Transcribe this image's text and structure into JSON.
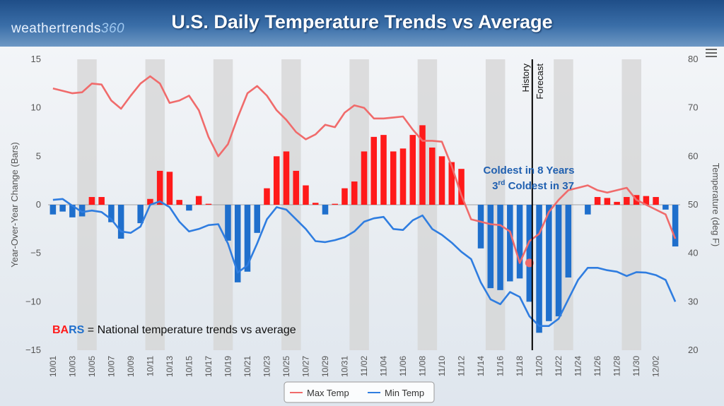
{
  "header": {
    "logo_text": "weathertrends",
    "logo_num": "360",
    "title": "U.S. Daily Temperature Trends vs Average"
  },
  "annotations": {
    "history": "History",
    "forecast": "Forecast",
    "coldest_line1": "Coldest in 8 Years",
    "coldest_line2_pre": "3",
    "coldest_line2_sup": "rd",
    "coldest_line2_post": " Coldest in 37",
    "bars_key": "BARS",
    "bars_desc": " = National temperature trends vs average"
  },
  "colors": {
    "max_temp": "#f06b6b",
    "min_temp": "#2f7de0",
    "bar_positive": "#ff1a1a",
    "bar_negative": "#1f6fcc",
    "band": "#d4d4d4",
    "annotation": "#2060b0"
  },
  "chart_data": {
    "type": "bar",
    "x_labels": [
      "10/01",
      "10/03",
      "10/05",
      "10/07",
      "10/09",
      "10/11",
      "10/13",
      "10/15",
      "10/17",
      "10/19",
      "10/21",
      "10/23",
      "10/25",
      "10/27",
      "10/29",
      "10/31",
      "11/02",
      "11/04",
      "11/06",
      "11/08",
      "11/10",
      "11/12",
      "11/14",
      "11/16",
      "11/18",
      "11/20",
      "11/22",
      "11/24",
      "11/26",
      "11/28",
      "11/30",
      "12/02"
    ],
    "ylabel_left": "Year-Over-Year Change (Bars)",
    "ylabel_right": "Temperature (deg F)",
    "y_left_range": [
      -15,
      15
    ],
    "y_left_ticks": [
      15,
      10,
      5,
      0,
      -5,
      -10,
      -15
    ],
    "y_right_range": [
      20,
      80
    ],
    "y_right_ticks": [
      80,
      70,
      60,
      50,
      40,
      30,
      20
    ],
    "forecast_start": "11/18",
    "highlight_point": {
      "date": "11/18",
      "value": 38
    },
    "series": [
      {
        "name": "Bars",
        "kind": "bar",
        "values": [
          -1.0,
          -0.7,
          -1.3,
          -1.2,
          0.8,
          0.8,
          -1.8,
          -3.5,
          0.0,
          -1.9,
          0.6,
          3.5,
          3.4,
          0.5,
          -0.6,
          0.9,
          0.1,
          0.0,
          -3.7,
          -8.0,
          -6.9,
          -2.9,
          1.7,
          5.0,
          5.5,
          3.5,
          2.0,
          0.2,
          -1.0,
          0.1,
          1.7,
          2.4,
          5.5,
          7.0,
          7.2,
          5.5,
          5.8,
          7.2,
          8.2,
          5.9,
          5.0,
          4.4,
          3.7,
          0.0,
          -4.5,
          -8.6,
          -8.8,
          -7.9,
          -7.6,
          -10.0,
          -13.2,
          -12.0,
          -11.5,
          -7.5,
          0.0,
          -1.0,
          0.8,
          0.7,
          0.3,
          0.8,
          1.0,
          0.9,
          0.8,
          -0.5,
          -4.3
        ]
      },
      {
        "name": "Max Temp",
        "kind": "line",
        "values": [
          74,
          73.5,
          73,
          73.2,
          75,
          74.8,
          71.5,
          69.8,
          72.5,
          75,
          76.5,
          75,
          71,
          71.5,
          72.5,
          69.5,
          64,
          60,
          62.5,
          68,
          73,
          74.5,
          72.5,
          69.5,
          67.5,
          65,
          63.5,
          64.5,
          66.5,
          66,
          69,
          70.5,
          70,
          67.8,
          67.8,
          68,
          68.2,
          65.5,
          63.2,
          63.2,
          63,
          58,
          52,
          47,
          46.5,
          46,
          45.8,
          44.5,
          38,
          42.5,
          44,
          48.5,
          51,
          53,
          53.5,
          54,
          53,
          52.5,
          53,
          53.5,
          51,
          50,
          49,
          48,
          43
        ]
      },
      {
        "name": "Min Temp",
        "kind": "line",
        "values": [
          51,
          51.2,
          49.8,
          48.5,
          48.8,
          48.5,
          47,
          44.5,
          44.2,
          45.5,
          50,
          50.7,
          49.5,
          46.5,
          44.5,
          45,
          45.8,
          46,
          42,
          36,
          37.5,
          42,
          47,
          49.5,
          49,
          47,
          45,
          42.5,
          42.3,
          42.7,
          43.3,
          44.5,
          46.5,
          47.2,
          47.5,
          45,
          44.8,
          46.8,
          47.8,
          45,
          43.8,
          42.2,
          40.3,
          38.8,
          34,
          30.5,
          29.5,
          32,
          31,
          27,
          25,
          25,
          26.5,
          30.5,
          34.5,
          37,
          37,
          36.5,
          36.2,
          35.3,
          36.1,
          36,
          35.5,
          34.5,
          30
        ]
      }
    ],
    "legend": [
      "Max Temp",
      "Min Temp"
    ],
    "legend_position": "bottom"
  }
}
